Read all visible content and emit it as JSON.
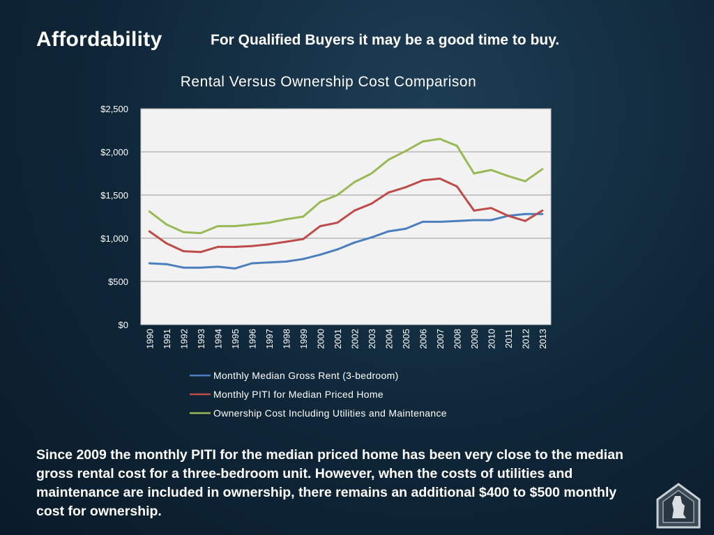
{
  "slide": {
    "title": "Affordability",
    "subtitle": "For Qualified Buyers it may be a good time to buy.",
    "body": "Since 2009 the monthly PITI for the median priced home has been very close to the median gross rental cost for a three-bedroom unit. However, when the costs of utilities and maintenance are included in ownership, there remains an additional $400 to $500 monthly cost for ownership."
  },
  "logo": {
    "icon": "house-emblem-icon"
  },
  "chart_data": {
    "type": "line",
    "title": "Rental Versus Ownership Cost Comparison",
    "xlabel": "",
    "ylabel": "",
    "categories": [
      "1990",
      "1991",
      "1992",
      "1993",
      "1994",
      "1995",
      "1996",
      "1997",
      "1998",
      "1999",
      "2000",
      "2001",
      "2002",
      "2003",
      "2004",
      "2005",
      "2006",
      "2007",
      "2008",
      "2009",
      "2010",
      "2011",
      "2012",
      "2013"
    ],
    "ylim": [
      0,
      2500
    ],
    "yticks": [
      0,
      500,
      1000,
      1500,
      2000,
      2500
    ],
    "ytick_labels": [
      "$0",
      "$500",
      "$1,000",
      "$1,500",
      "$2,000",
      "$2,500"
    ],
    "grid": true,
    "legend_position": "bottom",
    "series": [
      {
        "name": "Monthly Median Gross Rent (3-bedroom)",
        "color": "#4a7ebf",
        "values": [
          710,
          700,
          660,
          660,
          670,
          650,
          710,
          720,
          730,
          760,
          810,
          870,
          950,
          1010,
          1080,
          1110,
          1190,
          1190,
          1200,
          1210,
          1210,
          1260,
          1280,
          1280
        ]
      },
      {
        "name": "Monthly PITI for Median Priced Home",
        "color": "#be4b48",
        "values": [
          1080,
          940,
          850,
          840,
          900,
          900,
          910,
          930,
          960,
          990,
          1140,
          1180,
          1320,
          1400,
          1530,
          1590,
          1670,
          1690,
          1600,
          1320,
          1350,
          1260,
          1200,
          1320
        ]
      },
      {
        "name": "Ownership Cost Including Utilities and Maintenance",
        "color": "#98b954",
        "values": [
          1310,
          1160,
          1070,
          1060,
          1140,
          1140,
          1160,
          1180,
          1220,
          1250,
          1420,
          1500,
          1650,
          1750,
          1910,
          2010,
          2120,
          2150,
          2070,
          1750,
          1790,
          1720,
          1660,
          1800
        ]
      }
    ]
  }
}
